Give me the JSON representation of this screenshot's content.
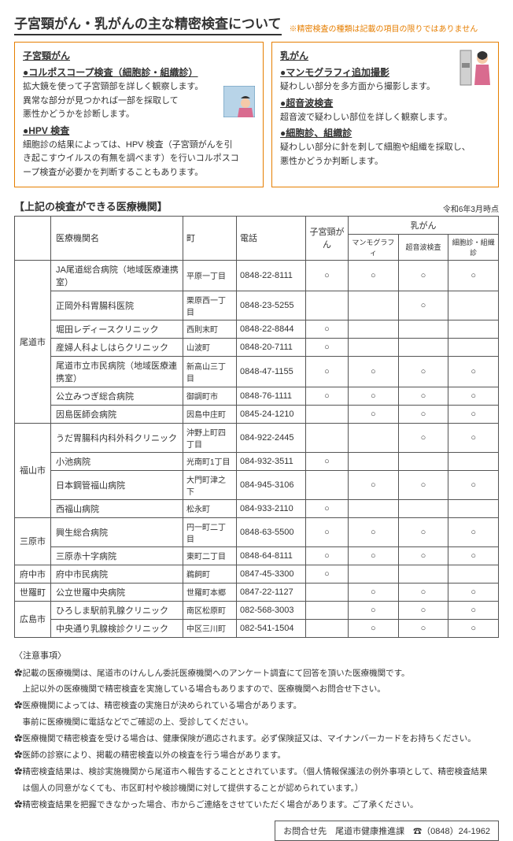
{
  "title": "子宮頸がん・乳がんの主な精密検査について",
  "title_note": "※精密検査の種類は記載の項目の限りではありません",
  "cervical": {
    "heading": "子宮頸がん",
    "exam1_name": "●コルポスコープ検査（細胞診・組織診）",
    "exam1_desc1": "拡大鏡を使って子宮頸部を詳しく観察します。",
    "exam1_desc2": "異常な部分が見つかれば一部を採取して",
    "exam1_desc3": "悪性かどうかを診断します。",
    "exam2_name": "●HPV 検査",
    "exam2_desc1": "細胞診の結果によっては、HPV 検査（子宮頸がんを引",
    "exam2_desc2": "き起こすウイルスの有無を調べます）を行いコルポスコ",
    "exam2_desc3": "ープ検査が必要かを判断することもあります。"
  },
  "breast": {
    "heading": "乳がん",
    "exam1_name": "●マンモグラフィ追加撮影",
    "exam1_desc": "疑わしい部分を多方面から撮影します。",
    "exam2_name": "●超音波検査",
    "exam2_desc": "超音波で疑わしい部位を詳しく観察します。",
    "exam3_name": "●細胞診、組織診",
    "exam3_desc1": "疑わしい部分に針を刺して細胞や組織を採取し、",
    "exam3_desc2": "悪性かどうか判断します。"
  },
  "table_section_title": "【上記の検査ができる医療機関】",
  "table_date": "令和6年3月時点",
  "headers": {
    "hospital": "医療機関名",
    "town": "町",
    "tel": "電話",
    "cervical": "子宮頸がん",
    "breast": "乳がん",
    "mammo": "マンモグラフィ",
    "us": "超音波検査",
    "cyto": "細胞診・組織診"
  },
  "cities": [
    {
      "name": "尾道市",
      "rows": [
        {
          "h": "JA尾道総合病院（地域医療連携室）",
          "t": "平原一丁目",
          "tel": "0848-22-8111",
          "c": "○",
          "m": "○",
          "u": "○",
          "y": "○"
        },
        {
          "h": "正岡外科胃腸科医院",
          "t": "栗原西一丁目",
          "tel": "0848-23-5255",
          "c": "",
          "m": "",
          "u": "○",
          "y": ""
        },
        {
          "h": "堀田レディースクリニック",
          "t": "西則末町",
          "tel": "0848-22-8844",
          "c": "○",
          "m": "",
          "u": "",
          "y": ""
        },
        {
          "h": "産婦人科よしはらクリニック",
          "t": "山波町",
          "tel": "0848-20-7111",
          "c": "○",
          "m": "",
          "u": "",
          "y": ""
        },
        {
          "h": "尾道市立市民病院（地域医療連携室）",
          "t": "新高山三丁目",
          "tel": "0848-47-1155",
          "c": "○",
          "m": "○",
          "u": "○",
          "y": "○"
        },
        {
          "h": "公立みつぎ総合病院",
          "t": "御調町市",
          "tel": "0848-76-1111",
          "c": "○",
          "m": "○",
          "u": "○",
          "y": "○"
        },
        {
          "h": "因島医師会病院",
          "t": "因島中庄町",
          "tel": "0845-24-1210",
          "c": "",
          "m": "○",
          "u": "○",
          "y": "○"
        }
      ]
    },
    {
      "name": "福山市",
      "rows": [
        {
          "h": "うだ胃腸科内科外科クリニック",
          "t": "沖野上町四丁目",
          "tel": "084-922-2445",
          "c": "",
          "m": "",
          "u": "○",
          "y": "○"
        },
        {
          "h": "小池病院",
          "t": "光南町1丁目",
          "tel": "084-932-3511",
          "c": "○",
          "m": "",
          "u": "",
          "y": ""
        },
        {
          "h": "日本鋼管福山病院",
          "t": "大門町津之下",
          "tel": "084-945-3106",
          "c": "",
          "m": "○",
          "u": "○",
          "y": "○"
        },
        {
          "h": "西福山病院",
          "t": "松永町",
          "tel": "084-933-2110",
          "c": "○",
          "m": "",
          "u": "",
          "y": ""
        }
      ]
    },
    {
      "name": "三原市",
      "rows": [
        {
          "h": "興生総合病院",
          "t": "円一町二丁目",
          "tel": "0848-63-5500",
          "c": "○",
          "m": "○",
          "u": "○",
          "y": "○"
        },
        {
          "h": "三原赤十字病院",
          "t": "東町二丁目",
          "tel": "0848-64-8111",
          "c": "○",
          "m": "○",
          "u": "○",
          "y": "○"
        }
      ]
    },
    {
      "name": "府中市",
      "rows": [
        {
          "h": "府中市民病院",
          "t": "鵜飼町",
          "tel": "0847-45-3300",
          "c": "○",
          "m": "",
          "u": "",
          "y": ""
        }
      ]
    },
    {
      "name": "世羅町",
      "rows": [
        {
          "h": "公立世羅中央病院",
          "t": "世羅町本郷",
          "tel": "0847-22-1127",
          "c": "",
          "m": "○",
          "u": "○",
          "y": "○"
        }
      ]
    },
    {
      "name": "広島市",
      "rows": [
        {
          "h": "ひろしま駅前乳腺クリニック",
          "t": "南区松原町",
          "tel": "082-568-3003",
          "c": "",
          "m": "○",
          "u": "○",
          "y": "○"
        },
        {
          "h": "中央通り乳腺検診クリニック",
          "t": "中区三川町",
          "tel": "082-541-1504",
          "c": "",
          "m": "○",
          "u": "○",
          "y": "○"
        }
      ]
    }
  ],
  "notes_title": "〈注意事項〉",
  "notes": [
    "✿記載の医療機関は、尾道市のけんしん委託医療機関へのアンケート調査にて回答を頂いた医療機関です。",
    "　上記以外の医療機関で精密検査を実施している場合もありますので、医療機関へお問合せ下さい。",
    "✿医療機関によっては、精密検査の実施日が決められている場合があります。",
    "　事前に医療機関に電話などでご確認の上、受診してください。",
    "✿医療機関で精密検査を受ける場合は、健康保険が適応されます。必ず保険証又は、マイナンバーカードをお持ちください。",
    "✿医師の診察により、掲載の精密検査以外の検査を行う場合があります。",
    "✿精密検査結果は、検診実施機関から尾道市へ報告することとされています。（個人情報保護法の例外事項として、精密検査結果",
    "　は個人の同意がなくても、市区町村や検診機関に対して提供することが認められています。）",
    "✿精密検査結果を把握できなかった場合、市からご連絡をさせていただく場合があります。ご了承ください。"
  ],
  "contact": "お問合せ先　尾道市健康推進課　☎（0848）24-1962"
}
